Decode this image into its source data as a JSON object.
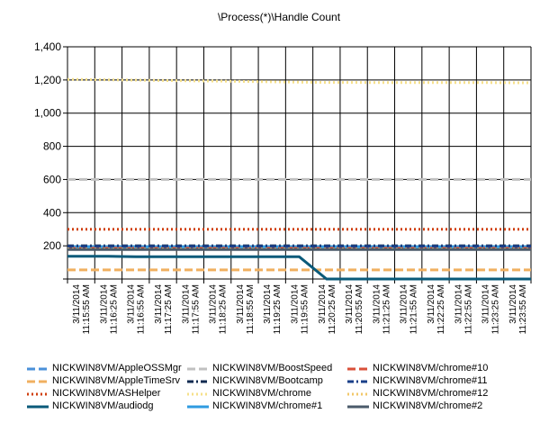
{
  "chart_data": {
    "type": "line",
    "title": "\\Process(*)\\Handle Count",
    "xlabel": "",
    "ylabel": "",
    "ylim": [
      0,
      1400
    ],
    "yticks": [
      0,
      200,
      400,
      600,
      800,
      1000,
      1200,
      1400
    ],
    "ytick_labels": [
      "",
      "200",
      "400",
      "600",
      "800",
      "1,000",
      "1,200",
      "1,400"
    ],
    "grid": true,
    "legend_position": "bottom",
    "x": [
      "3/11/2014 11:15:55 AM",
      "3/11/2014 11:16:25 AM",
      "3/11/2014 11:16:55 AM",
      "3/11/2014 11:17:25 AM",
      "3/11/2014 11:17:55 AM",
      "3/11/2014 11:18:25 AM",
      "3/11/2014 11:18:55 AM",
      "3/11/2014 11:19:25 AM",
      "3/11/2014 11:19:55 AM",
      "3/11/2014 11:20:25 AM",
      "3/11/2014 11:20:55 AM",
      "3/11/2014 11:21:25 AM",
      "3/11/2014 11:21:55 AM",
      "3/11/2014 11:22:25 AM",
      "3/11/2014 11:22:55 AM",
      "3/11/2014 11:23:25 AM",
      "3/11/2014 11:23:55 AM"
    ],
    "series": [
      {
        "name": "NICKWIN8VM/AppleOSSMgr",
        "color": "#4a90d9",
        "dash": "dash",
        "values": [
          190,
          190,
          190,
          190,
          190,
          190,
          190,
          190,
          190,
          190,
          190,
          190,
          190,
          190,
          190,
          190,
          190
        ]
      },
      {
        "name": "NICKWIN8VM/AppleTimeSrv",
        "color": "#f0b060",
        "dash": "dash",
        "values": [
          55,
          55,
          55,
          55,
          55,
          55,
          55,
          55,
          55,
          55,
          55,
          55,
          55,
          55,
          55,
          55,
          55
        ]
      },
      {
        "name": "NICKWIN8VM/ASHelper",
        "color": "#d04010",
        "dash": "dot",
        "values": [
          300,
          300,
          300,
          300,
          300,
          300,
          300,
          300,
          300,
          300,
          300,
          300,
          300,
          300,
          300,
          300,
          300
        ]
      },
      {
        "name": "NICKWIN8VM/audiodg",
        "color": "#0a5a7a",
        "dash": "solid",
        "values": [
          137,
          137,
          134,
          134,
          134,
          134,
          134,
          134,
          134,
          0,
          0,
          0,
          0,
          0,
          0,
          0,
          0
        ]
      },
      {
        "name": "NICKWIN8VM/BoostSpeed",
        "color": "#c0c0c0",
        "dash": "dash",
        "values": [
          600,
          600,
          600,
          600,
          600,
          600,
          600,
          600,
          600,
          600,
          600,
          600,
          600,
          600,
          600,
          600,
          600
        ]
      },
      {
        "name": "NICKWIN8VM/Bootcamp",
        "color": "#102a50",
        "dash": "dashdot",
        "values": [
          200,
          200,
          200,
          200,
          200,
          200,
          200,
          200,
          200,
          200,
          200,
          200,
          200,
          200,
          200,
          200,
          200
        ]
      },
      {
        "name": "NICKWIN8VM/chrome",
        "color": "#f6e08a",
        "dash": "dot",
        "values": [
          1203,
          1201,
          1199,
          1197,
          1195,
          1193,
          1191,
          1189,
          1187,
          1185,
          1185,
          1184,
          1184,
          1184,
          1184,
          1184,
          1183
        ]
      },
      {
        "name": "NICKWIN8VM/chrome#1",
        "color": "#2f9be0",
        "dash": "solid",
        "values": [
          195,
          195,
          195,
          195,
          195,
          195,
          195,
          195,
          195,
          195,
          195,
          195,
          195,
          195,
          195,
          195,
          195
        ]
      },
      {
        "name": "NICKWIN8VM/chrome#10",
        "color": "#d9503a",
        "dash": "dash",
        "values": [
          186,
          186,
          186,
          186,
          186,
          186,
          186,
          186,
          186,
          186,
          186,
          186,
          186,
          186,
          186,
          186,
          186
        ]
      },
      {
        "name": "NICKWIN8VM/chrome#11",
        "color": "#1a3f88",
        "dash": "dashdot",
        "values": [
          197,
          197,
          197,
          197,
          197,
          197,
          197,
          197,
          197,
          197,
          197,
          197,
          197,
          197,
          197,
          197,
          197
        ]
      },
      {
        "name": "NICKWIN8VM/chrome#12",
        "color": "#f2c86a",
        "dash": "dot",
        "values": [
          182,
          182,
          182,
          182,
          182,
          182,
          182,
          182,
          182,
          182,
          182,
          182,
          182,
          182,
          182,
          182,
          182
        ]
      },
      {
        "name": "NICKWIN8VM/chrome#2",
        "color": "#4a5a6a",
        "dash": "solid",
        "values": [
          178,
          178,
          178,
          178,
          178,
          178,
          178,
          178,
          178,
          178,
          178,
          178,
          178,
          178,
          178,
          178,
          178
        ]
      }
    ]
  }
}
